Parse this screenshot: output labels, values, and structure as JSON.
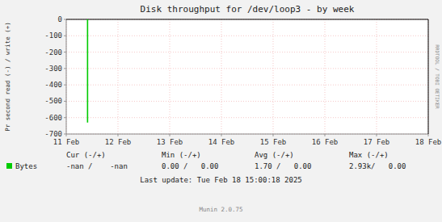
{
  "chart_data": {
    "type": "line",
    "title": "Disk throughput for /dev/loop3 - by week",
    "y_label": "Pr second read (-) / write (+)",
    "x": [
      1707609600,
      1707609600
    ],
    "series": [
      {
        "name": "Bytes",
        "color": "#00cc00",
        "values": [
          0,
          -630
        ]
      }
    ],
    "xlim": [
      1707523200,
      1708992000
    ],
    "xticks": [
      {
        "value": 1707523200,
        "label": "11 Feb"
      },
      {
        "value": 1707733028.5714285,
        "label": "12 Feb"
      },
      {
        "value": 1707942857.142857,
        "label": "13 Feb"
      },
      {
        "value": 1708152685.7142856,
        "label": "14 Feb"
      },
      {
        "value": 1708362514.2857144,
        "label": "15 Feb"
      },
      {
        "value": 1708572342.857143,
        "label": "16 Feb"
      },
      {
        "value": 1708782171.4285715,
        "label": "17 Feb"
      },
      {
        "value": 1708992000,
        "label": "18 Feb"
      }
    ],
    "ylim": [
      -700,
      0
    ],
    "yticks": [
      0,
      -100,
      -200,
      -300,
      -400,
      -500,
      -600,
      -700
    ],
    "grid": true,
    "stats": {
      "headers": [
        "Cur (-/+)",
        "Min (-/+)",
        "Avg (-/+)",
        "Max (-/+)"
      ],
      "values": [
        "-nan /    -nan",
        "0.00 /   0.00",
        "1.70 /   0.00",
        "2.93k/   0.00"
      ]
    },
    "annotations": [
      "Last update: Tue Feb 18 15:00:18 2025",
      "Munin 2.0.75",
      "RRDTOOL / TOBI OETIKER"
    ]
  }
}
